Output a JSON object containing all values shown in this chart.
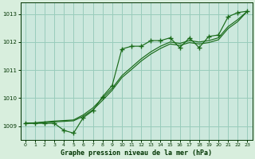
{
  "title": "Graphe pression niveau de la mer (hPa)",
  "background_color": "#d8eedd",
  "plot_bg_color": "#cce8dd",
  "grid_color": "#99ccbb",
  "line_color": "#1a6b1a",
  "text_color": "#003300",
  "ylim": [
    1008.5,
    1013.4
  ],
  "xlim": [
    -0.5,
    23.5
  ],
  "yticks": [
    1009,
    1010,
    1011,
    1012,
    1013
  ],
  "xticks": [
    0,
    1,
    2,
    3,
    4,
    5,
    6,
    7,
    8,
    9,
    10,
    11,
    12,
    13,
    14,
    15,
    16,
    17,
    18,
    19,
    20,
    21,
    22,
    23
  ],
  "y_main": [
    1009.1,
    1009.1,
    1009.1,
    1009.1,
    1008.85,
    1008.75,
    1009.3,
    1009.55,
    1010.05,
    1010.45,
    1011.75,
    1011.85,
    1011.85,
    1012.05,
    1012.05,
    1012.15,
    1011.8,
    1012.15,
    1011.8,
    1012.2,
    1012.25,
    1012.9,
    1013.05,
    1013.1
  ],
  "y_trend1": [
    1009.1,
    1009.12,
    1009.15,
    1009.18,
    1009.2,
    1009.22,
    1009.4,
    1009.65,
    1010.0,
    1010.35,
    1010.8,
    1011.1,
    1011.4,
    1011.65,
    1011.85,
    1012.0,
    1011.95,
    1012.05,
    1012.0,
    1012.05,
    1012.15,
    1012.55,
    1012.8,
    1013.1
  ],
  "y_trend2": [
    1009.1,
    1009.11,
    1009.13,
    1009.15,
    1009.17,
    1009.19,
    1009.35,
    1009.58,
    1009.92,
    1010.28,
    1010.73,
    1011.02,
    1011.32,
    1011.57,
    1011.77,
    1011.93,
    1011.88,
    1011.98,
    1011.93,
    1011.98,
    1012.08,
    1012.48,
    1012.73,
    1013.1
  ]
}
